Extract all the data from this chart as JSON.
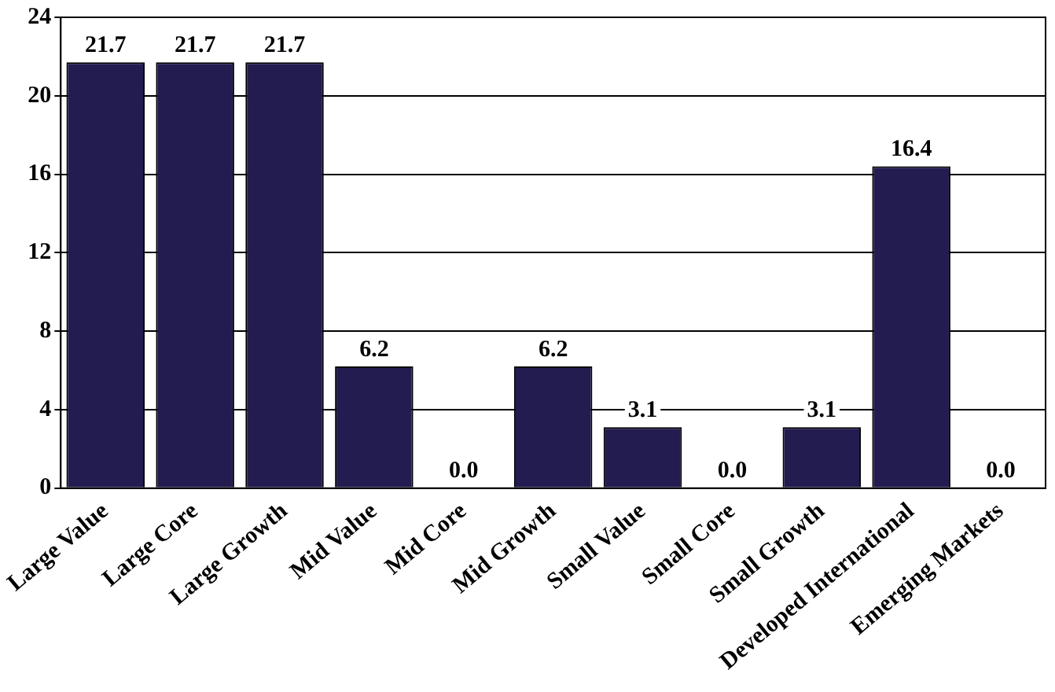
{
  "chart_data": {
    "type": "bar",
    "categories": [
      "Large Value",
      "Large Core",
      "Large Growth",
      "Mid Value",
      "Mid Core",
      "Mid Growth",
      "Small Value",
      "Small Core",
      "Small Growth",
      "Developed International",
      "Emerging Markets"
    ],
    "values": [
      21.7,
      21.7,
      21.7,
      6.2,
      0.0,
      6.2,
      3.1,
      0.0,
      3.1,
      16.4,
      0.0
    ],
    "color": "#221c50",
    "value_labels": [
      "21.7",
      "21.7",
      "21.7",
      "6.2",
      "0.0",
      "6.2",
      "3.1",
      "0.0",
      "3.1",
      "16.4",
      "0.0"
    ],
    "ylim": [
      0,
      24
    ],
    "yticks": [
      0,
      4,
      8,
      12,
      16,
      20,
      24
    ],
    "grid": "y",
    "legend": false
  }
}
